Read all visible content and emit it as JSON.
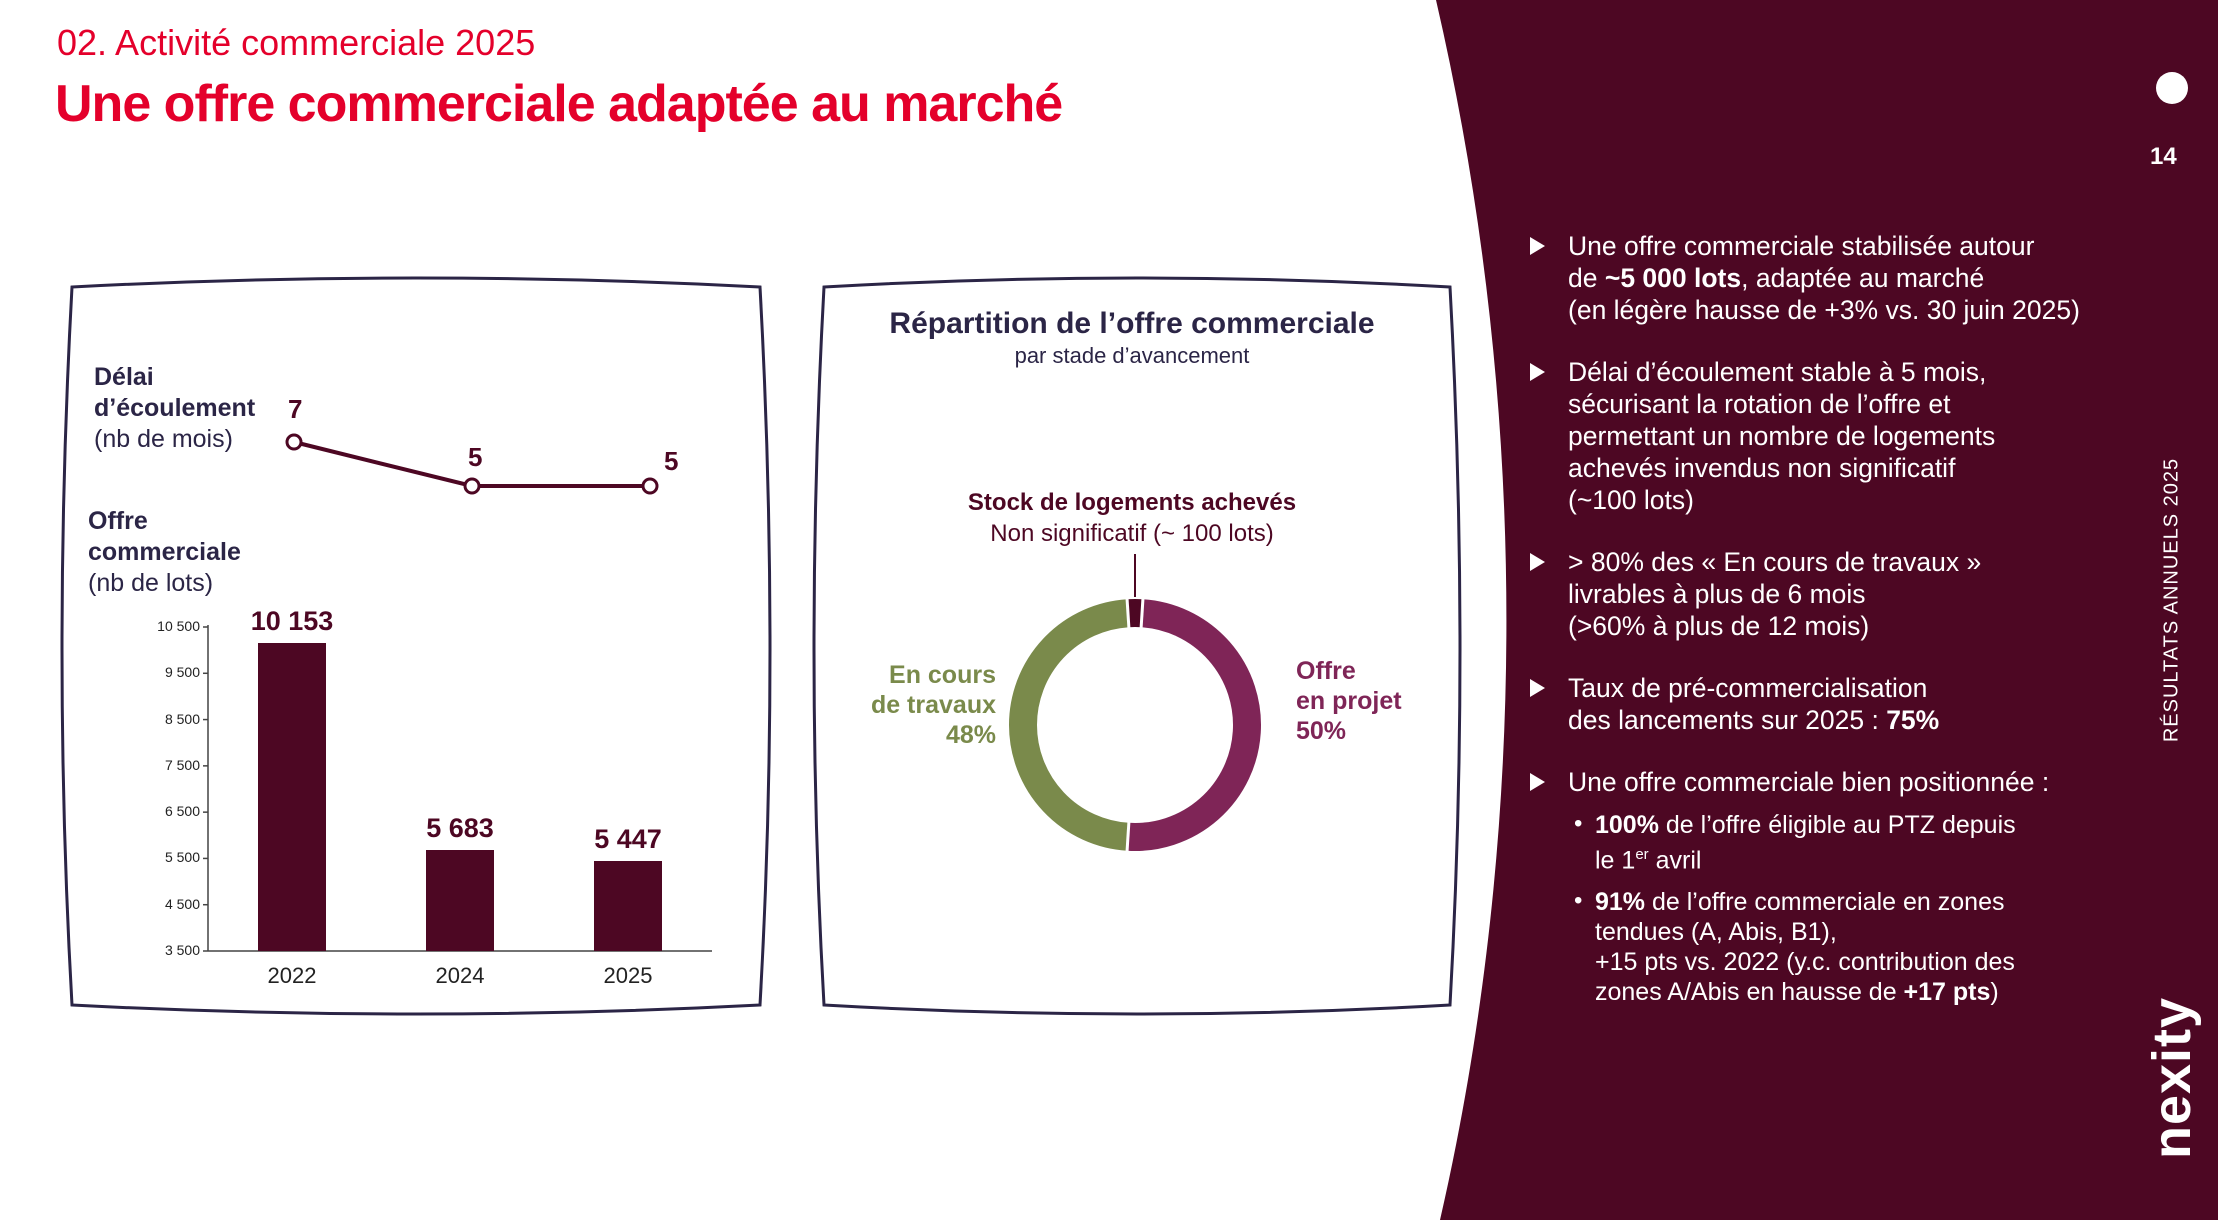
{
  "header": {
    "kicker": "02. Activité commerciale 2025",
    "title": "Une offre commerciale adaptée au marché"
  },
  "colors": {
    "brand_red": "#e4002b",
    "burgundy": "#4d0723",
    "navy": "#2b2546",
    "olive": "#7a8a4b",
    "purple": "#7f2557"
  },
  "chart_data": [
    {
      "type": "line",
      "title_line1": "Délai",
      "title_line2": "d’écoulement",
      "unit": "(nb de mois)",
      "categories": [
        "2022",
        "2024",
        "2025"
      ],
      "values": [
        7,
        5,
        5
      ],
      "value_labels": [
        "7",
        "5",
        "5"
      ]
    },
    {
      "type": "bar",
      "title_line1": "Offre",
      "title_line2": "commerciale",
      "unit": "(nb de lots)",
      "categories": [
        "2022",
        "2024",
        "2025"
      ],
      "values": [
        10153,
        5683,
        5447
      ],
      "value_labels": [
        "10 153",
        "5 683",
        "5 447"
      ],
      "yticks": [
        "10 500",
        "9 500",
        "8 500",
        "7 500",
        "6 500",
        "5 500",
        "4 500",
        "3 500"
      ],
      "ylim": [
        3500,
        10500
      ]
    },
    {
      "type": "pie",
      "title": "Répartition de l’offre commerciale",
      "subtitle": "par stade d’avancement",
      "slices": [
        {
          "label_line1": "Offre",
          "label_line2": "en projet",
          "pct_label": "50%",
          "value": 50,
          "color": "#7f2557"
        },
        {
          "label_line1": "En cours",
          "label_line2": "de travaux",
          "pct_label": "48%",
          "value": 48,
          "color": "#7a8a4b"
        },
        {
          "label_line1": "Stock de logements achevés",
          "label_line2": "Non significatif (~ 100 lots)",
          "value": 2,
          "color": "#4d0723"
        }
      ]
    }
  ],
  "bullets": {
    "b1": {
      "t1": "Une offre commerciale stabilisée autour",
      "t2": "de ",
      "t3": "~5 000 lots",
      "t4": ", adaptée au marché",
      "t5": "(en légère hausse de +3% vs. 30 juin 2025)"
    },
    "b2": {
      "t1": "Délai d’écoulement stable à 5 mois,",
      "t2": "sécurisant la rotation de l’offre et",
      "t3": "permettant un nombre de logements",
      "t4": "achevés invendus non significatif",
      "t5": "(~100 lots)"
    },
    "b3": {
      "t1": "> 80% des « En cours de travaux »",
      "t2": "livrables à plus de 6 mois",
      "t3": "(>60% à plus de 12 mois)"
    },
    "b4": {
      "t1": "Taux de pré-commercialisation",
      "t2": "des lancements sur 2025 : ",
      "t3": "75%"
    },
    "b5": {
      "t1": "Une offre commerciale bien positionnée :"
    },
    "s1": {
      "t1": "100%",
      "t2": " de l’offre éligible au PTZ depuis",
      "t3": "le 1",
      "sup": "er",
      "t4": " avril"
    },
    "s2": {
      "t1": "91%",
      "t2": " de l’offre commerciale en zones",
      "t3": "tendues (A, Abis, B1),",
      "t4": "+15 pts vs. 2022 (y.c. contribution des",
      "t5": "zones A/Abis en hausse de ",
      "t6": "+17 pts",
      "t7": ")"
    }
  },
  "sidebar": {
    "page_number": "14",
    "vertical_label": "RÉSULTATS ANNUELS 2025",
    "brand": "nexity"
  }
}
